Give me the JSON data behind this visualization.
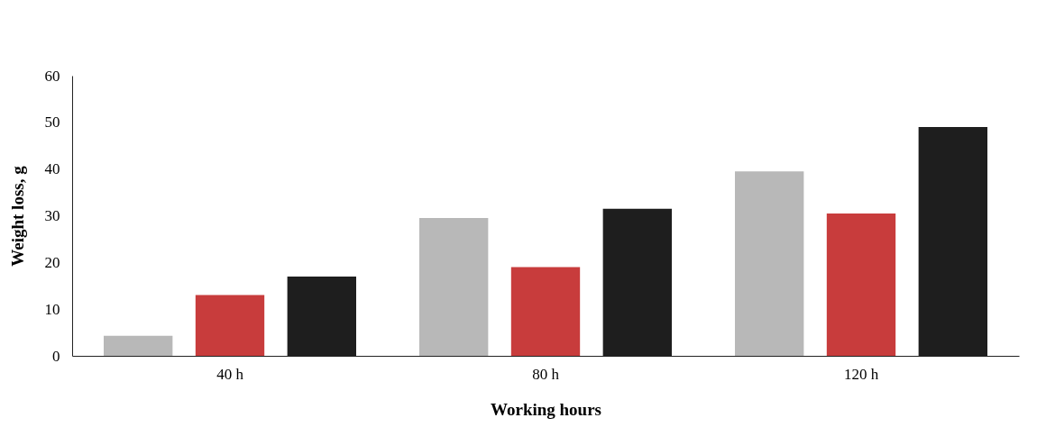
{
  "chart_data": {
    "type": "bar",
    "xlabel": "Working hours",
    "ylabel": "Weight loss, g",
    "categories": [
      "40 h",
      "80 h",
      "120 h"
    ],
    "series": [
      {
        "color": "#b8b8b8",
        "values": [
          4.3,
          29.5,
          39.5
        ]
      },
      {
        "color": "#c83c3c",
        "values": [
          13,
          19,
          30.5
        ]
      },
      {
        "color": "#1e1e1e",
        "values": [
          17,
          31.5,
          49
        ]
      }
    ],
    "ylim": [
      0,
      60
    ],
    "yticks": [
      0,
      10,
      20,
      30,
      40,
      50,
      60
    ]
  }
}
